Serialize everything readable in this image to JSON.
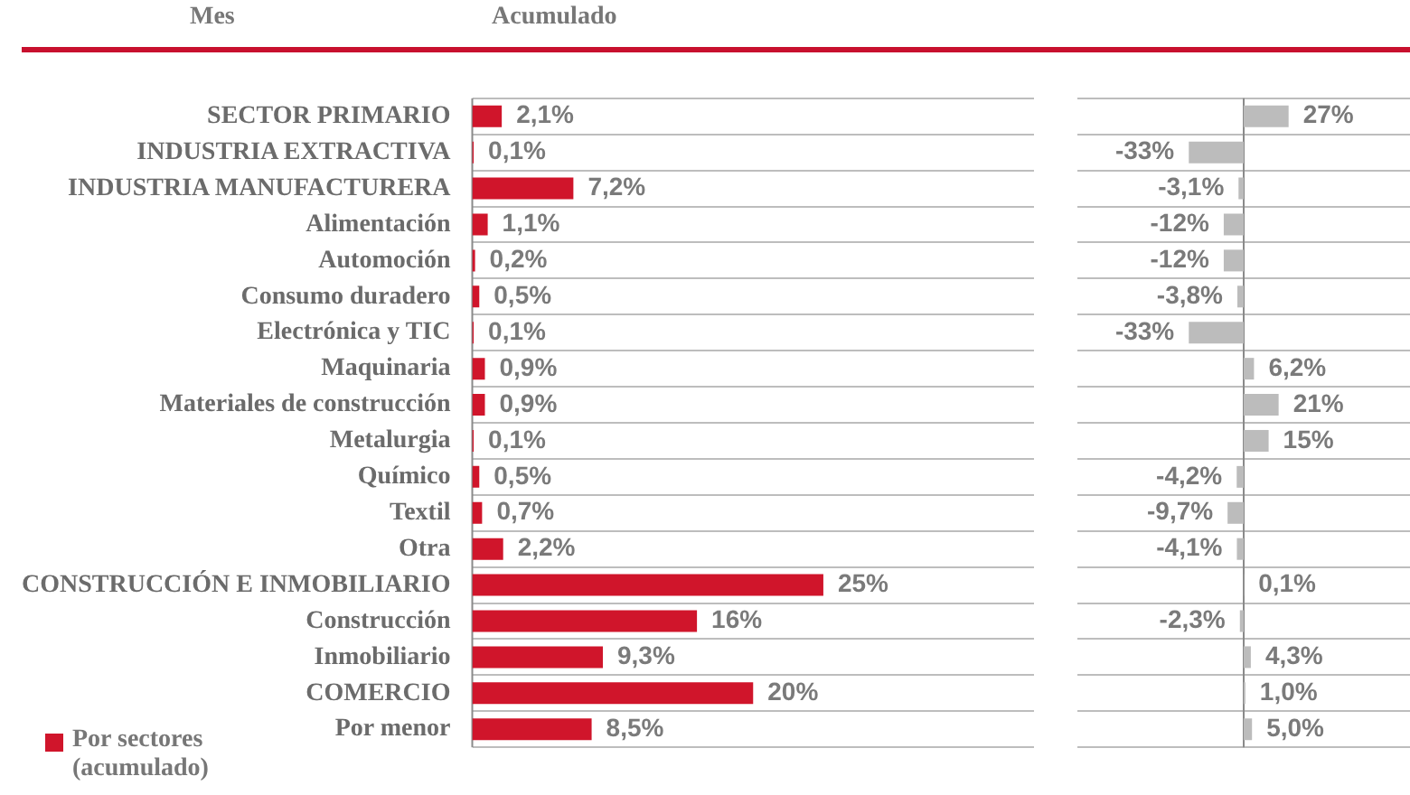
{
  "chart_data": [
    {
      "type": "bar",
      "orientation": "horizontal",
      "annotations": [
        "Mes",
        "Acumulado"
      ],
      "categories": [
        "SECTOR PRIMARIO",
        "INDUSTRIA EXTRACTIVA",
        "INDUSTRIA MANUFACTURERA",
        "Alimentación",
        "Automoción",
        "Consumo duradero",
        "Electrónica y TIC",
        "Maquinaria",
        "Materiales de construcción",
        "Metalurgia",
        "Químico",
        "Textil",
        "Otra",
        "CONSTRUCCIÓN E INMOBILIARIO",
        "Construcción",
        "Inmobiliario",
        "COMERCIO",
        "Por menor"
      ],
      "series": [
        {
          "name": "Por sectores (acumulado)",
          "color": "#d0152b",
          "values": [
            2.1,
            0.1,
            7.2,
            1.1,
            0.2,
            0.5,
            0.1,
            0.9,
            0.9,
            0.1,
            0.5,
            0.7,
            2.2,
            25,
            16,
            9.3,
            20,
            8.5
          ],
          "value_labels": [
            "2,1%",
            "0,1%",
            "7,2%",
            "1,1%",
            "0,2%",
            "0,5%",
            "0,1%",
            "0,9%",
            "0,9%",
            "0,1%",
            "0,5%",
            "0,7%",
            "2,2%",
            "25%",
            "16%",
            "9,3%",
            "20%",
            "8,5%"
          ]
        }
      ],
      "xlim": [
        0,
        40
      ],
      "grid": "y",
      "legend": "bottom left"
    },
    {
      "type": "bar",
      "orientation": "horizontal",
      "categories": [
        null,
        null,
        null,
        null,
        null,
        null,
        null,
        null,
        null,
        null,
        null,
        null,
        null,
        null,
        null,
        null,
        null,
        null
      ],
      "series": [
        {
          "color": "#bcbcbc",
          "values": [
            27,
            -33,
            -3.1,
            -12,
            -12,
            -3.8,
            -33,
            6.2,
            21,
            15,
            -4.2,
            -9.7,
            -4.1,
            0.1,
            -2.3,
            4.3,
            1.0,
            5.0
          ],
          "value_labels": [
            "27%",
            "-33%",
            "-3,1%",
            "-12%",
            "-12%",
            "-3,8%",
            "-33%",
            "6,2%",
            "21%",
            "15%",
            "-4,2%",
            "-9,7%",
            "-4,1%",
            "0,1%",
            "-2,3%",
            "4,3%",
            "1,0%",
            "5,0%"
          ]
        }
      ],
      "xlim": [
        -100,
        100
      ],
      "grid": "y"
    }
  ]
}
